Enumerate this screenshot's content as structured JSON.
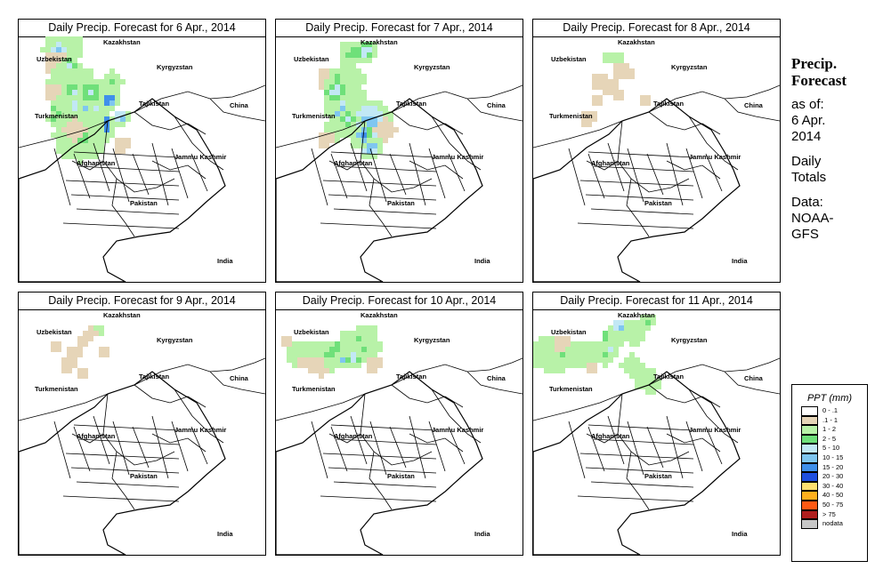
{
  "title_prefix": "Daily Precip. Forecast for",
  "panels": [
    {
      "date": " 6 Apr., 2014",
      "field": [
        [
          0,
          44,
          10,
          18,
          2
        ],
        [
          1,
          50,
          8,
          20,
          2
        ],
        [
          2,
          40,
          12,
          12,
          5
        ],
        [
          3,
          42,
          25,
          16,
          1
        ],
        [
          4,
          55,
          32,
          12,
          4
        ],
        [
          5,
          70,
          40,
          10,
          2
        ],
        [
          6,
          56,
          65,
          22,
          5
        ],
        [
          7,
          52,
          68,
          16,
          6
        ],
        [
          8,
          46,
          48,
          18,
          2
        ],
        [
          9,
          35,
          55,
          10,
          1
        ],
        [
          10,
          45,
          80,
          14,
          4
        ],
        [
          11,
          64,
          70,
          24,
          6
        ],
        [
          12,
          70,
          85,
          20,
          6
        ],
        [
          13,
          82,
          78,
          18,
          6
        ],
        [
          14,
          76,
          72,
          26,
          5
        ],
        [
          15,
          86,
          95,
          20,
          7
        ],
        [
          16,
          60,
          95,
          14,
          7
        ],
        [
          17,
          44,
          88,
          12,
          4
        ],
        [
          18,
          60,
          112,
          12,
          2
        ],
        [
          19,
          110,
          120,
          10,
          1
        ],
        [
          20,
          95,
          70,
          14,
          6
        ],
        [
          21,
          110,
          85,
          10,
          5
        ],
        [
          22,
          65,
          105,
          30,
          3
        ],
        [
          23,
          100,
          45,
          12,
          3
        ],
        [
          24,
          75,
          62,
          18,
          4
        ],
        [
          25,
          58,
          58,
          10,
          4
        ],
        [
          26,
          50,
          105,
          10,
          2
        ],
        [
          27,
          58,
          100,
          12,
          1
        ],
        [
          28,
          78,
          92,
          8,
          2
        ]
      ]
    },
    {
      "date": " 7 Apr., 2014",
      "field": [
        [
          0,
          82,
          18,
          16,
          3
        ],
        [
          1,
          95,
          16,
          14,
          4
        ],
        [
          2,
          55,
          42,
          14,
          1
        ],
        [
          3,
          70,
          45,
          18,
          4
        ],
        [
          4,
          80,
          48,
          16,
          2
        ],
        [
          5,
          66,
          60,
          16,
          4
        ],
        [
          6,
          86,
          68,
          14,
          2
        ],
        [
          7,
          68,
          80,
          16,
          5
        ],
        [
          8,
          55,
          78,
          10,
          2
        ],
        [
          9,
          108,
          95,
          14,
          1
        ],
        [
          10,
          108,
          98,
          14,
          3
        ],
        [
          11,
          100,
          92,
          28,
          5
        ],
        [
          12,
          80,
          88,
          12,
          4
        ],
        [
          13,
          96,
          105,
          12,
          3
        ],
        [
          14,
          92,
          110,
          14,
          2
        ],
        [
          15,
          96,
          112,
          10,
          3
        ],
        [
          16,
          104,
          120,
          14,
          5
        ],
        [
          17,
          96,
          108,
          12,
          6
        ],
        [
          18,
          108,
          108,
          10,
          4
        ],
        [
          19,
          64,
          105,
          14,
          2
        ],
        [
          20,
          54,
          110,
          10,
          1
        ],
        [
          21,
          118,
          100,
          12,
          1
        ]
      ]
    },
    {
      "date": " 8 Apr., 2014",
      "field": [
        [
          0,
          80,
          18,
          8,
          2
        ],
        [
          1,
          92,
          20,
          8,
          2
        ],
        [
          2,
          96,
          35,
          10,
          1
        ],
        [
          3,
          102,
          40,
          8,
          1
        ],
        [
          4,
          70,
          45,
          10,
          1
        ],
        [
          5,
          124,
          70,
          8,
          1
        ],
        [
          6,
          84,
          54,
          10,
          1
        ],
        [
          7,
          66,
          70,
          8,
          1
        ],
        [
          8,
          60,
          85,
          10,
          1
        ],
        [
          9,
          90,
          60,
          8,
          1
        ]
      ]
    },
    {
      "date": " 9 Apr., 2014",
      "field": [
        [
          0,
          84,
          18,
          8,
          2
        ],
        [
          1,
          70,
          30,
          8,
          1
        ],
        [
          2,
          60,
          45,
          10,
          1
        ],
        [
          3,
          90,
          42,
          8,
          1
        ],
        [
          4,
          80,
          25,
          6,
          1
        ],
        [
          5,
          54,
          55,
          10,
          1
        ],
        [
          6,
          38,
          40,
          8,
          1
        ],
        [
          7,
          66,
          65,
          8,
          1
        ]
      ]
    },
    {
      "date": " 10 Apr., 2014",
      "field": [
        [
          0,
          20,
          46,
          16,
          2
        ],
        [
          1,
          40,
          48,
          16,
          2
        ],
        [
          2,
          60,
          45,
          16,
          3
        ],
        [
          3,
          76,
          48,
          14,
          5
        ],
        [
          4,
          86,
          50,
          14,
          4
        ],
        [
          5,
          60,
          60,
          10,
          2
        ],
        [
          6,
          76,
          40,
          10,
          2
        ],
        [
          7,
          70,
          38,
          10,
          4
        ],
        [
          8,
          82,
          30,
          14,
          2
        ],
        [
          9,
          98,
          35,
          14,
          3
        ],
        [
          10,
          108,
          40,
          10,
          2
        ],
        [
          11,
          90,
          28,
          12,
          3
        ],
        [
          12,
          100,
          20,
          10,
          2
        ],
        [
          13,
          42,
          58,
          10,
          1
        ],
        [
          14,
          24,
          55,
          8,
          1
        ],
        [
          15,
          108,
          55,
          10,
          1
        ],
        [
          16,
          50,
          68,
          6,
          1
        ],
        [
          17,
          10,
          30,
          8,
          1
        ]
      ]
    },
    {
      "date": " 11 Apr., 2014",
      "field": [
        [
          0,
          14,
          45,
          22,
          2
        ],
        [
          1,
          30,
          48,
          18,
          3
        ],
        [
          2,
          50,
          44,
          16,
          2
        ],
        [
          3,
          64,
          46,
          14,
          2
        ],
        [
          4,
          80,
          45,
          12,
          3
        ],
        [
          5,
          86,
          38,
          12,
          5
        ],
        [
          6,
          80,
          30,
          10,
          4
        ],
        [
          7,
          90,
          22,
          10,
          3
        ],
        [
          8,
          96,
          16,
          10,
          5
        ],
        [
          9,
          112,
          18,
          14,
          2
        ],
        [
          10,
          122,
          12,
          10,
          3
        ],
        [
          11,
          110,
          28,
          10,
          2
        ],
        [
          12,
          96,
          30,
          10,
          2
        ],
        [
          13,
          110,
          60,
          12,
          2
        ],
        [
          14,
          122,
          72,
          14,
          2
        ],
        [
          15,
          132,
          80,
          10,
          2
        ],
        [
          16,
          60,
          60,
          8,
          1
        ],
        [
          17,
          28,
          36,
          10,
          1
        ]
      ]
    }
  ],
  "labels": {
    "kaz": "Kazakhstan",
    "uzb": "Uzbekistan",
    "kyr": "Kyrgyzstan",
    "taj": "Tajikistan",
    "tur": "Turkmenistan",
    "chi": "China",
    "afg": "Afghanistan",
    "jk": "Jammu Kashmir",
    "pak": "Pakistan",
    "ind": "India"
  },
  "side": {
    "line1": "Precip.",
    "line2": "Forecast",
    "line3": "as of:",
    "line4": "6 Apr.",
    "line5": "2014",
    "line6": "Daily",
    "line7": "Totals",
    "line8": "Data:",
    "line9": "NOAA-",
    "line10": "GFS"
  },
  "legend": {
    "title": "PPT (mm)",
    "items": [
      {
        "label": "0 - .1",
        "color": "#ffffff"
      },
      {
        "label": ".1 - 1",
        "color": "#e6d5b8"
      },
      {
        "label": "1 - 2",
        "color": "#b8f2a8"
      },
      {
        "label": "2 - 5",
        "color": "#6fe07a"
      },
      {
        "label": "5 - 10",
        "color": "#c2e8f5"
      },
      {
        "label": "10 - 15",
        "color": "#7fc6f0"
      },
      {
        "label": "15 - 20",
        "color": "#3f8fea"
      },
      {
        "label": "20 - 30",
        "color": "#1f4fe0"
      },
      {
        "label": "30 - 40",
        "color": "#ffe070"
      },
      {
        "label": "40 - 50",
        "color": "#ffb01e"
      },
      {
        "label": "50 - 75",
        "color": "#ff5a14"
      },
      {
        "label": "> 75",
        "color": "#b01e1e"
      },
      {
        "label": "nodata",
        "color": "#c8c8c8"
      }
    ]
  }
}
